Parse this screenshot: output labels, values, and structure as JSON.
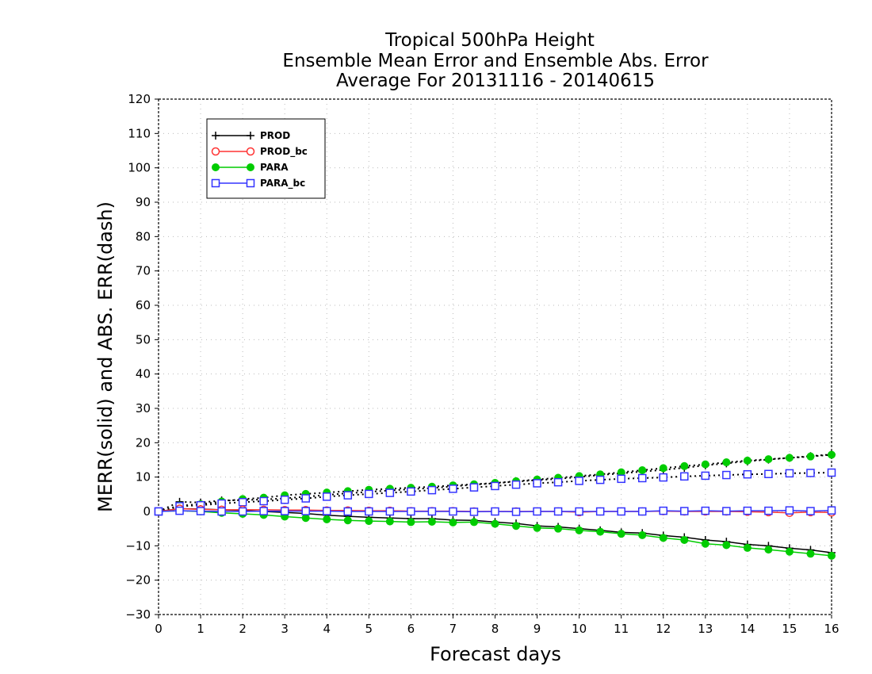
{
  "chart_data": {
    "type": "line",
    "title_lines": [
      "Tropical 500hPa Height",
      "Ensemble Mean Error and Ensemble Abs. Error",
      "Average For 20131116 - 20140615"
    ],
    "xlabel": "Forecast days",
    "ylabel": "MERR(solid) and ABS. ERR(dash)",
    "xlim": [
      0,
      16
    ],
    "ylim": [
      -30,
      120
    ],
    "x_ticks": [
      0,
      1,
      2,
      3,
      4,
      5,
      6,
      7,
      8,
      9,
      10,
      11,
      12,
      13,
      14,
      15,
      16
    ],
    "y_ticks": [
      -30,
      -20,
      -10,
      0,
      10,
      20,
      30,
      40,
      50,
      60,
      70,
      80,
      90,
      100,
      110,
      120
    ],
    "grid": true,
    "legend_position": "top-left",
    "x": [
      0,
      0.5,
      1,
      1.5,
      2,
      2.5,
      3,
      3.5,
      4,
      4.5,
      5,
      5.5,
      6,
      6.5,
      7,
      7.5,
      8,
      8.5,
      9,
      9.5,
      10,
      10.5,
      11,
      11.5,
      12,
      12.5,
      13,
      13.5,
      14,
      14.5,
      15,
      15.5,
      16
    ],
    "series": [
      {
        "name": "PROD",
        "color": "#000000",
        "marker": "plus",
        "mean_error": [
          0,
          0.8,
          0.7,
          0.5,
          0.3,
          0,
          -0.3,
          -0.6,
          -1.1,
          -1.4,
          -1.7,
          -1.9,
          -2.1,
          -2.1,
          -2.5,
          -2.6,
          -3.1,
          -3.5,
          -4.2,
          -4.5,
          -5.0,
          -5.5,
          -6.1,
          -6.3,
          -7.0,
          -7.5,
          -8.3,
          -8.8,
          -9.6,
          -10.0,
          -10.7,
          -11.2,
          -12.0
        ],
        "abs_error": [
          0,
          2.8,
          2.6,
          3.2,
          3.3,
          3.5,
          3.8,
          4.3,
          4.8,
          5.3,
          5.7,
          6.1,
          6.5,
          6.8,
          7.3,
          7.8,
          8.2,
          8.7,
          9.1,
          9.5,
          10.0,
          10.6,
          11.1,
          11.6,
          12.1,
          12.7,
          13.4,
          14.0,
          14.6,
          15.1,
          15.6,
          16.1,
          16.6
        ]
      },
      {
        "name": "PROD_bc",
        "color": "#ff3333",
        "marker": "circle-open",
        "mean_error": [
          0,
          0.8,
          0.6,
          0.5,
          0.5,
          0.5,
          0.4,
          0.4,
          0.3,
          0.3,
          0.2,
          0.2,
          0.1,
          0.1,
          0.1,
          0,
          0,
          0,
          0,
          0,
          -0.2,
          0,
          0,
          0,
          0.1,
          0,
          0,
          0,
          -0.1,
          -0.2,
          -0.4,
          -0.2,
          -0.3
        ]
      },
      {
        "name": "PARA",
        "color": "#00cc00",
        "marker": "circle-filled",
        "mean_error": [
          0,
          0.2,
          0,
          -0.4,
          -0.7,
          -1.0,
          -1.5,
          -1.9,
          -2.3,
          -2.6,
          -2.8,
          -2.9,
          -3.1,
          -3.0,
          -3.2,
          -3.1,
          -3.6,
          -4.2,
          -4.8,
          -5.0,
          -5.5,
          -5.9,
          -6.5,
          -6.9,
          -7.7,
          -8.3,
          -9.4,
          -9.8,
          -10.6,
          -11.1,
          -11.7,
          -12.3,
          -12.9
        ],
        "abs_error": [
          0,
          1.7,
          2.1,
          2.9,
          3.6,
          4.0,
          4.7,
          5.1,
          5.5,
          5.9,
          6.3,
          6.6,
          6.9,
          7.2,
          7.6,
          7.9,
          8.3,
          8.8,
          9.3,
          9.8,
          10.3,
          10.8,
          11.4,
          12.0,
          12.6,
          13.2,
          13.7,
          14.3,
          14.8,
          15.2,
          15.6,
          16.0,
          16.5
        ]
      },
      {
        "name": "PARA_bc",
        "color": "#3333ff",
        "marker": "square-open",
        "mean_error": [
          0,
          0.2,
          0.1,
          0,
          0,
          0.1,
          0.1,
          0.1,
          0.1,
          0,
          0,
          0,
          0,
          0,
          0,
          -0.1,
          0,
          -0.1,
          0,
          0,
          0,
          0,
          0,
          0,
          0.2,
          0.1,
          0.2,
          0.1,
          0.2,
          0.2,
          0.3,
          0.1,
          0.3
        ],
        "abs_error": [
          0,
          1.5,
          1.8,
          2.3,
          2.7,
          3.0,
          3.4,
          3.8,
          4.3,
          4.7,
          5.1,
          5.4,
          5.8,
          6.2,
          6.6,
          7.0,
          7.4,
          7.8,
          8.2,
          8.5,
          8.9,
          9.2,
          9.5,
          9.7,
          9.9,
          10.2,
          10.4,
          10.6,
          10.8,
          10.9,
          11.1,
          11.2,
          11.3
        ]
      }
    ]
  }
}
